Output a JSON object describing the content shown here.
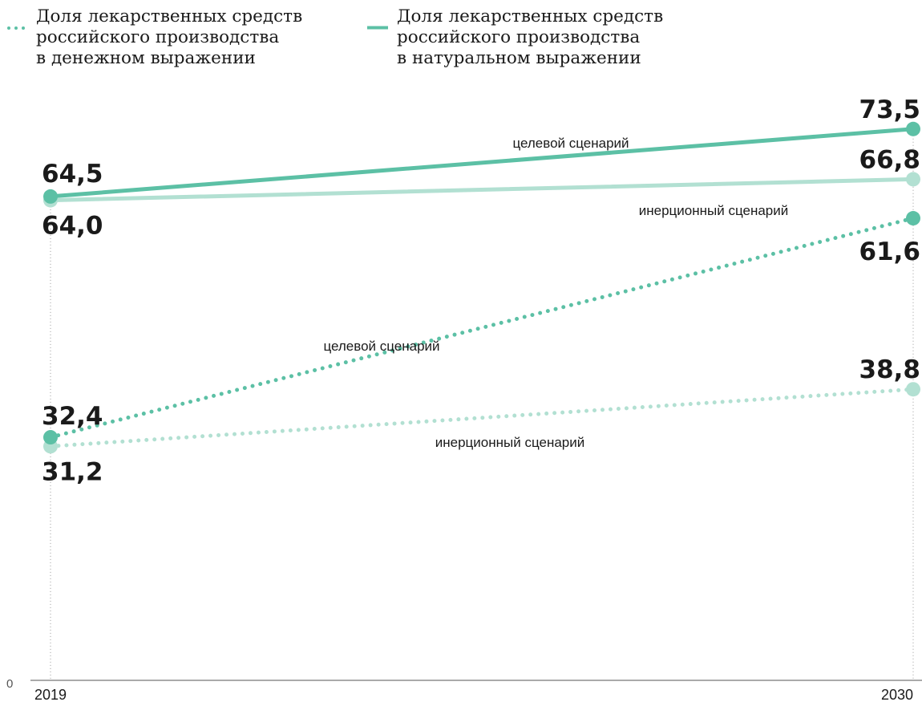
{
  "legend": [
    {
      "label": "Доля лекарственных средств\nроссийского производства\nв денежном выражении",
      "style": "dotted",
      "color": "#5cc0a5"
    },
    {
      "label": "Доля лекарственных средств\nроссийского производства\nв натуральном выражении",
      "style": "solid",
      "color": "#5cc0a5"
    }
  ],
  "chart_data": {
    "type": "line",
    "x": [
      "2019",
      "2030"
    ],
    "ylim": [
      0,
      80
    ],
    "y_tick_labels": [
      "0"
    ],
    "colors": {
      "target": "#5cc0a5",
      "inertial": "#b2e0d2",
      "label": "#1a1a1a",
      "axis": "#555555",
      "guide": "#999999"
    },
    "series": [
      {
        "group": "натуральное",
        "scenario": "целевой сценарий",
        "style": "solid",
        "tone": "target",
        "values": [
          64.5,
          73.5
        ],
        "value_labels": [
          "64,5",
          "73,5"
        ]
      },
      {
        "group": "натуральное",
        "scenario": "инерционный сценарий",
        "style": "solid",
        "tone": "inertial",
        "values": [
          64.0,
          66.8
        ],
        "value_labels": [
          "64,0",
          "66,8"
        ]
      },
      {
        "group": "денежное",
        "scenario": "целевой сценарий",
        "style": "dotted",
        "tone": "target",
        "values": [
          32.4,
          61.6
        ],
        "value_labels": [
          "32,4",
          "61,6"
        ]
      },
      {
        "group": "денежное",
        "scenario": "инерционный сценарий",
        "style": "dotted",
        "tone": "inertial",
        "values": [
          31.2,
          38.8
        ],
        "value_labels": [
          "31,2",
          "38,8"
        ]
      }
    ]
  }
}
